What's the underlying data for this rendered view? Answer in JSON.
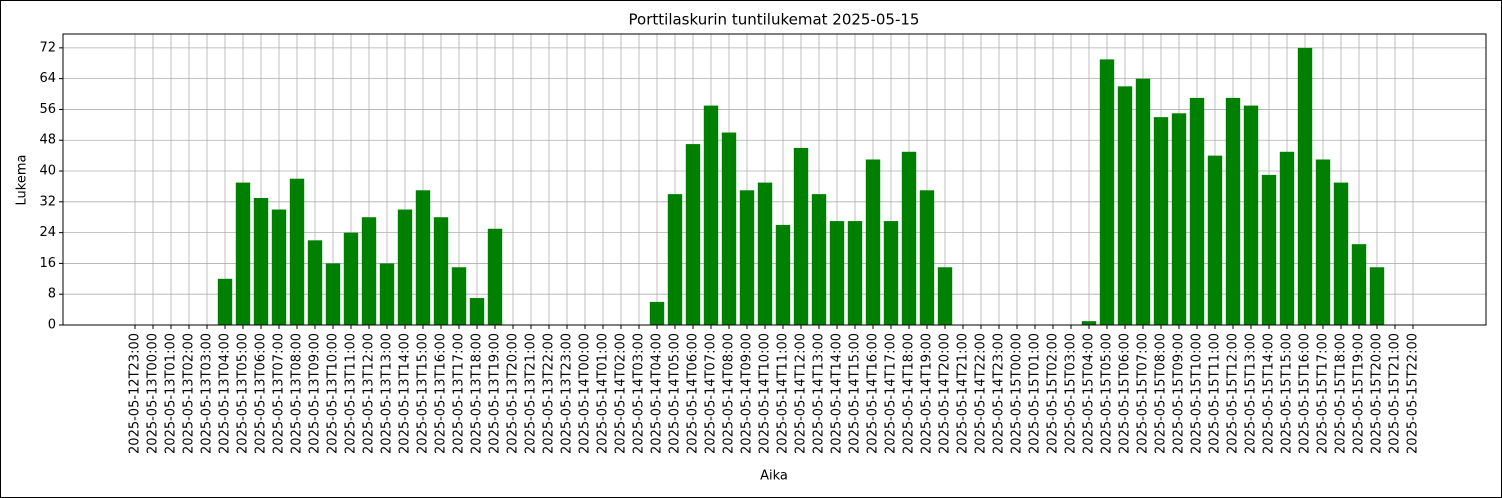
{
  "chart_data": {
    "type": "bar",
    "title": "Porttilaskurin tuntilukemat 2025-05-15",
    "x_label": "Aika",
    "y_label": "Lukema",
    "categories": [
      "2025-05-12T23:00",
      "2025-05-13T00:00",
      "2025-05-13T01:00",
      "2025-05-13T02:00",
      "2025-05-13T03:00",
      "2025-05-13T04:00",
      "2025-05-13T05:00",
      "2025-05-13T06:00",
      "2025-05-13T07:00",
      "2025-05-13T08:00",
      "2025-05-13T09:00",
      "2025-05-13T10:00",
      "2025-05-13T11:00",
      "2025-05-13T12:00",
      "2025-05-13T13:00",
      "2025-05-13T14:00",
      "2025-05-13T15:00",
      "2025-05-13T16:00",
      "2025-05-13T17:00",
      "2025-05-13T18:00",
      "2025-05-13T19:00",
      "2025-05-13T20:00",
      "2025-05-13T21:00",
      "2025-05-13T22:00",
      "2025-05-13T23:00",
      "2025-05-14T00:00",
      "2025-05-14T01:00",
      "2025-05-14T02:00",
      "2025-05-14T03:00",
      "2025-05-14T04:00",
      "2025-05-14T05:00",
      "2025-05-14T06:00",
      "2025-05-14T07:00",
      "2025-05-14T08:00",
      "2025-05-14T09:00",
      "2025-05-14T10:00",
      "2025-05-14T11:00",
      "2025-05-14T12:00",
      "2025-05-14T13:00",
      "2025-05-14T14:00",
      "2025-05-14T15:00",
      "2025-05-14T16:00",
      "2025-05-14T17:00",
      "2025-05-14T18:00",
      "2025-05-14T19:00",
      "2025-05-14T20:00",
      "2025-05-14T21:00",
      "2025-05-14T22:00",
      "2025-05-14T23:00",
      "2025-05-15T00:00",
      "2025-05-15T01:00",
      "2025-05-15T02:00",
      "2025-05-15T03:00",
      "2025-05-15T04:00",
      "2025-05-15T05:00",
      "2025-05-15T06:00",
      "2025-05-15T07:00",
      "2025-05-15T08:00",
      "2025-05-15T09:00",
      "2025-05-15T10:00",
      "2025-05-15T11:00",
      "2025-05-15T12:00",
      "2025-05-15T13:00",
      "2025-05-15T14:00",
      "2025-05-15T15:00",
      "2025-05-15T16:00",
      "2025-05-15T17:00",
      "2025-05-15T18:00",
      "2025-05-15T19:00",
      "2025-05-15T20:00",
      "2025-05-15T21:00",
      "2025-05-15T22:00"
    ],
    "values": [
      0,
      0,
      0,
      0,
      0,
      12,
      37,
      33,
      30,
      38,
      22,
      16,
      24,
      28,
      16,
      30,
      35,
      28,
      15,
      7,
      25,
      0,
      0,
      0,
      0,
      0,
      0,
      0,
      0,
      6,
      34,
      47,
      57,
      50,
      35,
      37,
      26,
      46,
      34,
      27,
      27,
      43,
      27,
      45,
      35,
      15,
      0,
      0,
      0,
      0,
      0,
      0,
      0,
      1,
      69,
      62,
      64,
      54,
      55,
      59,
      44,
      59,
      57,
      39,
      45,
      72,
      43,
      37,
      21,
      15,
      0,
      0
    ],
    "color": "#008000",
    "ylim": [
      0,
      75.6
    ],
    "yticks": [
      0,
      8,
      16,
      24,
      32,
      40,
      48,
      56,
      64,
      72
    ],
    "grid": true
  }
}
